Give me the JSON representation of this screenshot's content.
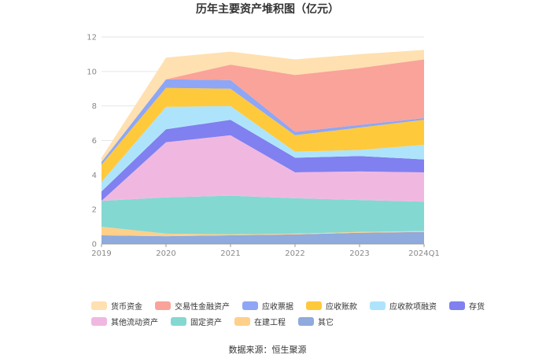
{
  "chart_data": {
    "type": "area",
    "stacked": true,
    "title": "历年主要资产堆积图（亿元）",
    "categories": [
      "2019",
      "2020",
      "2021",
      "2022",
      "2023",
      "2024Q1"
    ],
    "ylim": [
      0,
      12
    ],
    "yticks": [
      0,
      2,
      4,
      6,
      8,
      10,
      12
    ],
    "grid": true,
    "legend_position": "bottom",
    "series": [
      {
        "name": "其它",
        "color": "#8faadc",
        "values": [
          0.5,
          0.45,
          0.5,
          0.55,
          0.65,
          0.7
        ]
      },
      {
        "name": "在建工程",
        "color": "#ffd08a",
        "values": [
          0.5,
          0.15,
          0.05,
          0.05,
          0.05,
          0.05
        ]
      },
      {
        "name": "固定资产",
        "color": "#84d8d2",
        "values": [
          1.5,
          2.1,
          2.25,
          2.05,
          1.85,
          1.7
        ]
      },
      {
        "name": "其他流动资产",
        "color": "#f0b8e0",
        "values": [
          0.0,
          3.2,
          3.5,
          1.5,
          1.65,
          1.7
        ]
      },
      {
        "name": "存货",
        "color": "#8080f0",
        "values": [
          0.55,
          0.75,
          0.9,
          0.85,
          0.9,
          0.75
        ]
      },
      {
        "name": "应收款项融资",
        "color": "#aee4fb",
        "values": [
          0.55,
          1.3,
          0.8,
          0.35,
          0.35,
          0.85
        ]
      },
      {
        "name": "应收账款",
        "color": "#ffc93c",
        "values": [
          1.0,
          1.1,
          1.0,
          0.95,
          1.3,
          1.45
        ]
      },
      {
        "name": "应收票据",
        "color": "#8ea6f5",
        "values": [
          0.15,
          0.5,
          0.5,
          0.2,
          0.15,
          0.1
        ]
      },
      {
        "name": "交易性金融资产",
        "color": "#f9a39a",
        "values": [
          0.0,
          0.0,
          0.9,
          3.3,
          3.3,
          3.4
        ]
      },
      {
        "name": "货币资金",
        "color": "#ffe0b0",
        "values": [
          0.25,
          1.25,
          0.75,
          0.9,
          0.8,
          0.55
        ]
      }
    ]
  },
  "legend_rows": [
    [
      {
        "name": "货币资金",
        "color": "#ffe0b0"
      },
      {
        "name": "交易性金融资产",
        "color": "#f9a39a"
      },
      {
        "name": "应收票据",
        "color": "#8ea6f5"
      },
      {
        "name": "应收账款",
        "color": "#ffc93c"
      },
      {
        "name": "应收款项融资",
        "color": "#aee4fb"
      },
      {
        "name": "存货",
        "color": "#8080f0"
      }
    ],
    [
      {
        "name": "其他流动资产",
        "color": "#f0b8e0"
      },
      {
        "name": "固定资产",
        "color": "#84d8d2"
      },
      {
        "name": "在建工程",
        "color": "#ffd08a"
      },
      {
        "name": "其它",
        "color": "#8faadc"
      }
    ]
  ],
  "source": "数据来源：恒生聚源"
}
